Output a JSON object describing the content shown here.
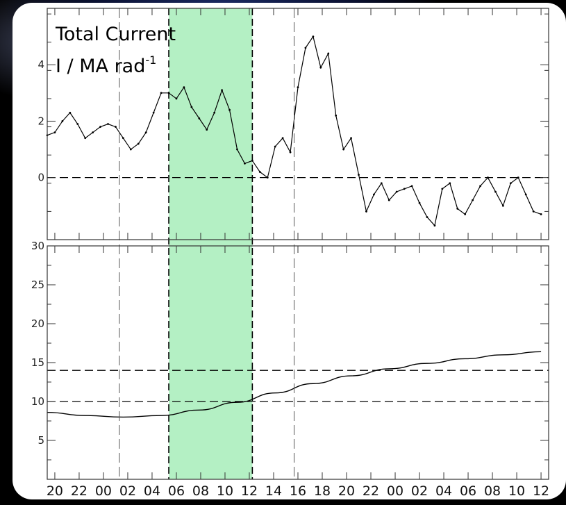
{
  "colors": {
    "highlight": "#b4f0c4",
    "line": "#000000",
    "background": "#ffffff"
  },
  "chart_data": [
    {
      "type": "scatter",
      "title": "Total Current",
      "ylabel_main": "I / MA rad",
      "ylabel_sup": "-1",
      "ylim": [
        -2.2,
        6.0
      ],
      "yticks": [
        0,
        2,
        4
      ],
      "ytick_labels": [
        "0",
        "2",
        "4"
      ],
      "grid": false,
      "x": [
        0,
        1,
        2,
        3,
        4,
        5,
        6,
        7,
        8,
        9,
        10,
        11,
        12,
        13,
        14,
        15,
        16,
        17,
        18,
        19,
        20,
        21,
        22,
        23,
        24,
        25,
        26,
        27,
        28,
        29,
        30,
        31,
        32,
        33,
        34,
        35,
        36,
        37,
        38,
        39,
        40,
        41,
        42,
        43,
        44,
        45,
        46,
        47,
        48,
        49,
        50,
        51,
        52,
        53,
        54,
        55,
        56,
        57,
        58,
        59,
        60,
        61,
        62,
        63,
        64,
        65
      ],
      "values": [
        1.5,
        1.6,
        2.0,
        2.3,
        1.9,
        1.4,
        1.6,
        1.8,
        1.9,
        1.8,
        1.4,
        1.0,
        1.2,
        1.6,
        2.3,
        3.0,
        3.0,
        2.8,
        3.2,
        2.5,
        2.1,
        1.7,
        2.3,
        3.1,
        2.4,
        1.0,
        0.5,
        0.6,
        0.2,
        0.0,
        1.1,
        1.4,
        0.9,
        3.2,
        4.6,
        5.0,
        3.9,
        4.4,
        2.2,
        1.0,
        1.4,
        0.1,
        -1.2,
        -0.6,
        -0.2,
        -0.8,
        -0.5,
        -0.4,
        -0.3,
        -0.9,
        -1.4,
        -1.7,
        -0.4,
        -0.2,
        -1.1,
        -1.3,
        -0.8,
        -0.3,
        0.0,
        -0.5,
        -1.0,
        -0.2,
        0.0,
        -0.6,
        -1.2,
        -1.3
      ],
      "reference_lines": [
        0
      ]
    },
    {
      "type": "line",
      "ylim": [
        0,
        30
      ],
      "yticks": [
        5,
        10,
        15,
        20,
        25,
        30
      ],
      "ytick_labels": [
        "5",
        "10",
        "15",
        "20",
        "25",
        "30"
      ],
      "grid": false,
      "x": [
        0,
        5,
        10,
        15,
        20,
        25,
        30,
        35,
        40,
        45,
        50,
        55,
        60,
        65
      ],
      "values": [
        8.6,
        8.2,
        8.0,
        8.2,
        8.9,
        9.9,
        11.1,
        12.3,
        13.3,
        14.2,
        14.9,
        15.5,
        16.0,
        16.4
      ],
      "reference_lines": [
        10,
        14
      ]
    }
  ],
  "x_axis": {
    "range_hours": [
      0,
      66
    ],
    "tick_labels": [
      "20",
      "22",
      "00",
      "02",
      "04",
      "06",
      "08",
      "10",
      "12",
      "14",
      "16",
      "18",
      "20",
      "22",
      "00",
      "02",
      "04",
      "06",
      "08",
      "10",
      "12"
    ],
    "highlight_hours": [
      16,
      27
    ],
    "markers": [
      {
        "hour": 9.5,
        "style": "dashed-long"
      },
      {
        "hour": 16,
        "style": "dashed-bold"
      },
      {
        "hour": 27,
        "style": "dashed-bold"
      },
      {
        "hour": 32.5,
        "style": "dashed-long"
      }
    ]
  }
}
